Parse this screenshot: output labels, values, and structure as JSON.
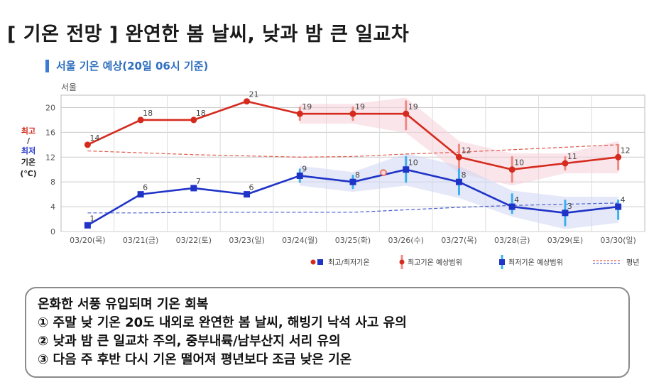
{
  "title": "[ 기온 전망 ] 완연한 봄 날씨, 낮과 밤 큰 일교차",
  "subtitle": "서울 기온 예상(20일 06시 기준)",
  "summary": {
    "heading": "온화한 서풍 유입되며 기온 회복",
    "items": [
      "① 주말 낮 기온 20도 내외로 완연한 봄 날씨, 해빙기 낙석 사고 유의",
      "② 낮과 밤 큰 일교차 주의, 중부내륙/남부산지 서리 유의",
      "③ 다음 주 후반 다시 기온 떨어져 평년보다 조금 낮은 기온"
    ]
  },
  "colors": {
    "max": "#d52b1e",
    "min": "#1f34c7",
    "max_band": "#f6cfd8",
    "min_band": "#cdd6f2",
    "grid": "#cccccc"
  },
  "chart_data": {
    "type": "line",
    "location": "서울",
    "ylabel_parts": [
      "최고",
      "/",
      "최저",
      "기온",
      "(℃)"
    ],
    "ylim": [
      0,
      22
    ],
    "yticks": [
      0,
      4,
      8,
      12,
      16,
      20
    ],
    "categories": [
      "03/20(목)",
      "03/21(금)",
      "03/22(토)",
      "03/23(일)",
      "03/24(월)",
      "03/25(화)",
      "03/26(수)",
      "03/27(목)",
      "03/28(금)",
      "03/29(토)",
      "03/30(일)"
    ],
    "series": [
      {
        "name": "최고기온",
        "values": [
          14,
          18,
          18,
          21,
          19,
          19,
          19,
          12,
          10,
          11,
          12
        ],
        "range_low": [
          null,
          null,
          null,
          null,
          18,
          18,
          16.5,
          10,
          8,
          10,
          10
        ],
        "range_high": [
          null,
          null,
          null,
          null,
          20,
          20,
          21,
          14,
          12,
          12,
          14
        ],
        "normal": [
          13,
          12.7,
          12.4,
          12.2,
          12.0,
          12.1,
          12.5,
          12.8,
          13.2,
          13.6,
          14
        ]
      },
      {
        "name": "최저기온",
        "values": [
          1,
          6,
          7,
          6,
          9,
          8,
          10,
          8,
          4,
          3,
          4
        ],
        "range_low": [
          null,
          null,
          null,
          null,
          8,
          7,
          8,
          6,
          3,
          1,
          2
        ],
        "range_high": [
          null,
          null,
          null,
          null,
          10,
          9,
          12,
          10,
          6,
          5,
          5
        ],
        "normal": [
          3,
          3,
          3.1,
          3.1,
          3.1,
          3.1,
          3.5,
          3.9,
          4.2,
          4.4,
          4.6
        ]
      }
    ],
    "legend": [
      {
        "label": "최고/최저기온",
        "kind": "markers"
      },
      {
        "label": "최고기온 예상범위",
        "kind": "max-range"
      },
      {
        "label": "최저기온 예상범위",
        "kind": "min-range"
      },
      {
        "label": "평년",
        "kind": "normal"
      }
    ],
    "legend_position": "bottom-right"
  }
}
